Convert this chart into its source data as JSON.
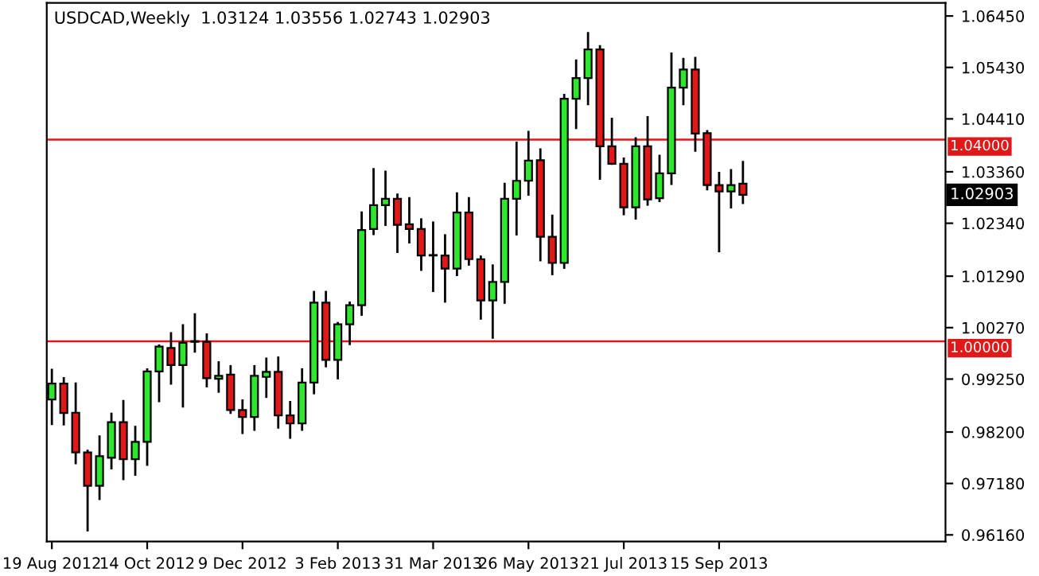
{
  "chart_data": {
    "type": "candlestick",
    "title": "USDCAD,Weekly  1.03124 1.03556 1.02743 1.02903",
    "x": [
      "2012-08-19",
      "2012-08-26",
      "2012-09-02",
      "2012-09-09",
      "2012-09-16",
      "2012-09-23",
      "2012-09-30",
      "2012-10-07",
      "2012-10-14",
      "2012-10-21",
      "2012-10-28",
      "2012-11-04",
      "2012-11-11",
      "2012-11-18",
      "2012-11-25",
      "2012-12-02",
      "2012-12-09",
      "2012-12-16",
      "2012-12-23",
      "2012-12-30",
      "2013-01-06",
      "2013-01-13",
      "2013-01-20",
      "2013-01-27",
      "2013-02-03",
      "2013-02-10",
      "2013-02-17",
      "2013-02-24",
      "2013-03-03",
      "2013-03-10",
      "2013-03-17",
      "2013-03-24",
      "2013-03-31",
      "2013-04-07",
      "2013-04-14",
      "2013-04-21",
      "2013-04-28",
      "2013-05-05",
      "2013-05-12",
      "2013-05-19",
      "2013-05-26",
      "2013-06-02",
      "2013-06-09",
      "2013-06-16",
      "2013-06-23",
      "2013-06-30",
      "2013-07-07",
      "2013-07-14",
      "2013-07-21",
      "2013-07-28",
      "2013-08-04",
      "2013-08-11",
      "2013-08-18",
      "2013-08-25",
      "2013-09-01",
      "2013-09-08",
      "2013-09-15",
      "2013-09-22",
      "2013-09-29"
    ],
    "ohlc": [
      [
        0.98844,
        0.99433,
        0.98362,
        0.99159
      ],
      [
        0.99159,
        0.99266,
        0.98353,
        0.98576
      ],
      [
        0.98583,
        0.99159,
        0.97584,
        0.97795
      ],
      [
        0.97795,
        0.97827,
        0.96252,
        0.97133
      ],
      [
        0.97134,
        0.9811,
        0.96872,
        0.97722
      ],
      [
        0.97691,
        0.9856,
        0.9748,
        0.98394
      ],
      [
        0.98394,
        0.98812,
        0.97269,
        0.9766
      ],
      [
        0.9766,
        0.98299,
        0.97354,
        0.98006
      ],
      [
        0.98006,
        0.99442,
        0.97552,
        0.99402
      ],
      [
        0.99402,
        0.99915,
        0.98812,
        0.99896
      ],
      [
        0.99865,
        1.00158,
        0.99159,
        0.99528
      ],
      [
        0.99528,
        1.00315,
        0.98709,
        0.99968
      ],
      [
        1.0,
        1.00535,
        0.99797,
        0.9999
      ],
      [
        0.9999,
        1.00135,
        0.99108,
        0.99266
      ],
      [
        0.99255,
        0.99581,
        0.99,
        0.99316
      ],
      [
        0.99339,
        0.99505,
        0.98583,
        0.98636
      ],
      [
        0.98636,
        0.98825,
        0.98182,
        0.98497
      ],
      [
        0.98497,
        0.99505,
        0.98245,
        0.99316
      ],
      [
        0.99293,
        0.99654,
        0.98898,
        0.99392
      ],
      [
        0.99392,
        0.99676,
        0.9829,
        0.98529
      ],
      [
        0.98529,
        0.98794,
        0.98088,
        0.98371
      ],
      [
        0.98371,
        0.99442,
        0.98245,
        0.99181
      ],
      [
        0.99181,
        1.00977,
        0.9897,
        1.00765
      ],
      [
        1.00765,
        1.00977,
        0.99505,
        0.99631
      ],
      [
        0.99631,
        1.0036,
        0.99266,
        1.00337
      ],
      [
        1.00337,
        1.00765,
        0.99946,
        1.00715
      ],
      [
        1.00715,
        1.02552,
        1.00526,
        1.02205
      ],
      [
        1.02227,
        1.03411,
        1.02127,
        1.027
      ],
      [
        1.027,
        1.03361,
        1.02309,
        1.02826
      ],
      [
        1.02826,
        1.02907,
        1.01773,
        1.02309
      ],
      [
        1.02321,
        1.02835,
        1.01962,
        1.02227
      ],
      [
        1.02227,
        1.02416,
        1.01418,
        1.01701
      ],
      [
        1.0171,
        1.02353,
        1.00998,
        1.017
      ],
      [
        1.01701,
        1.02101,
        1.00788,
        1.0144
      ],
      [
        1.0144,
        1.0293,
        1.01314,
        1.02552
      ],
      [
        1.02552,
        1.02835,
        1.01521,
        1.01628
      ],
      [
        1.01628,
        1.01679,
        1.0045,
        1.0081
      ],
      [
        1.0081,
        1.01502,
        1.00072,
        1.01175
      ],
      [
        1.01175,
        1.03119,
        1.00765,
        1.02826
      ],
      [
        1.02826,
        1.03938,
        1.0212,
        1.03182
      ],
      [
        1.03182,
        1.04149,
        1.02907,
        1.03582
      ],
      [
        1.03591,
        1.03802,
        1.01607,
        1.0207
      ],
      [
        1.0207,
        1.02489,
        1.01332,
        1.01553
      ],
      [
        1.01553,
        1.04883,
        1.01458,
        1.0481
      ],
      [
        1.0481,
        1.05566,
        1.0423,
        1.0522
      ],
      [
        1.0522,
        1.06111,
        1.04703,
        1.05787
      ],
      [
        1.05787,
        1.0585,
        1.03222,
        1.03865
      ],
      [
        1.03865,
        1.0441,
        1.03519,
        1.03519
      ],
      [
        1.03519,
        1.03623,
        1.0252,
        1.02656
      ],
      [
        1.02656,
        1.04023,
        1.02435,
        1.03865
      ],
      [
        1.03865,
        1.04442,
        1.02709,
        1.02813
      ],
      [
        1.02835,
        1.03676,
        1.02781,
        1.0333
      ],
      [
        1.0333,
        1.05702,
        1.03119,
        1.05031
      ],
      [
        1.05031,
        1.05598,
        1.04703,
        1.05387
      ],
      [
        1.05387,
        1.05616,
        1.0378,
        1.04117
      ],
      [
        1.04127,
        1.04167,
        1.03015,
        1.03096
      ],
      [
        1.03096,
        1.03339,
        1.01786,
        1.0297
      ],
      [
        1.0297,
        1.03393,
        1.02656,
        1.03096
      ],
      [
        1.03124,
        1.03556,
        1.02743,
        1.02903
      ]
    ],
    "colors": [
      "#2ee62e",
      "#e01818",
      "#e01818",
      "#e01818",
      "#2ee62e",
      "#2ee62e",
      "#e01818",
      "#2ee62e",
      "#2ee62e",
      "#2ee62e",
      "#e01818",
      "#2ee62e",
      "#000000",
      "#e01818",
      "#2ee62e",
      "#e01818",
      "#e01818",
      "#2ee62e",
      "#2ee62e",
      "#e01818",
      "#e01818",
      "#2ee62e",
      "#2ee62e",
      "#e01818",
      "#2ee62e",
      "#2ee62e",
      "#2ee62e",
      "#2ee62e",
      "#2ee62e",
      "#e01818",
      "#e01818",
      "#e01818",
      "#000000",
      "#e01818",
      "#2ee62e",
      "#e01818",
      "#e01818",
      "#2ee62e",
      "#2ee62e",
      "#2ee62e",
      "#2ee62e",
      "#e01818",
      "#e01818",
      "#2ee62e",
      "#2ee62e",
      "#2ee62e",
      "#e01818",
      "#e01818",
      "#e01818",
      "#2ee62e",
      "#e01818",
      "#2ee62e",
      "#2ee62e",
      "#2ee62e",
      "#e01818",
      "#e01818",
      "#e01818",
      "#2ee62e",
      "#e01818"
    ],
    "xlim": [
      "2012-08-16",
      "2014-01-26"
    ],
    "xticks": [
      {
        "value": "2012-08-19",
        "label": "19 Aug 2012"
      },
      {
        "value": "2012-10-14",
        "label": "14 Oct 2012"
      },
      {
        "value": "2012-12-09",
        "label": "9 Dec 2012"
      },
      {
        "value": "2013-02-03",
        "label": "3 Feb 2013"
      },
      {
        "value": "2013-03-31",
        "label": "31 Mar 2013"
      },
      {
        "value": "2013-05-26",
        "label": "26 May 2013"
      },
      {
        "value": "2013-07-21",
        "label": "21 Jul 2013"
      },
      {
        "value": "2013-09-15",
        "label": "15 Sep 2013"
      }
    ],
    "ylim": [
      0.9603,
      1.0671
    ],
    "yticks": [
      {
        "value": 0.9616,
        "label": "0.96160"
      },
      {
        "value": 0.9718,
        "label": "0.97180"
      },
      {
        "value": 0.982,
        "label": "0.98200"
      },
      {
        "value": 0.9925,
        "label": "0.99250"
      },
      {
        "value": 1.0027,
        "label": "1.00270"
      },
      {
        "value": 1.0129,
        "label": "1.01290"
      },
      {
        "value": 1.0234,
        "label": "1.02340"
      },
      {
        "value": 1.0336,
        "label": "1.03360"
      },
      {
        "value": 1.0441,
        "label": "1.04410"
      },
      {
        "value": 1.0543,
        "label": "1.05430"
      },
      {
        "value": 1.0645,
        "label": "1.06450"
      }
    ],
    "ref_lines": [
      {
        "axis": "y",
        "value": 1.04,
        "label": "1.04000",
        "color": "#e01818"
      },
      {
        "axis": "y",
        "value": 1.0,
        "label": "1.00000",
        "color": "#e01818"
      }
    ],
    "annotations": [
      "1.02903"
    ],
    "grid": false
  }
}
